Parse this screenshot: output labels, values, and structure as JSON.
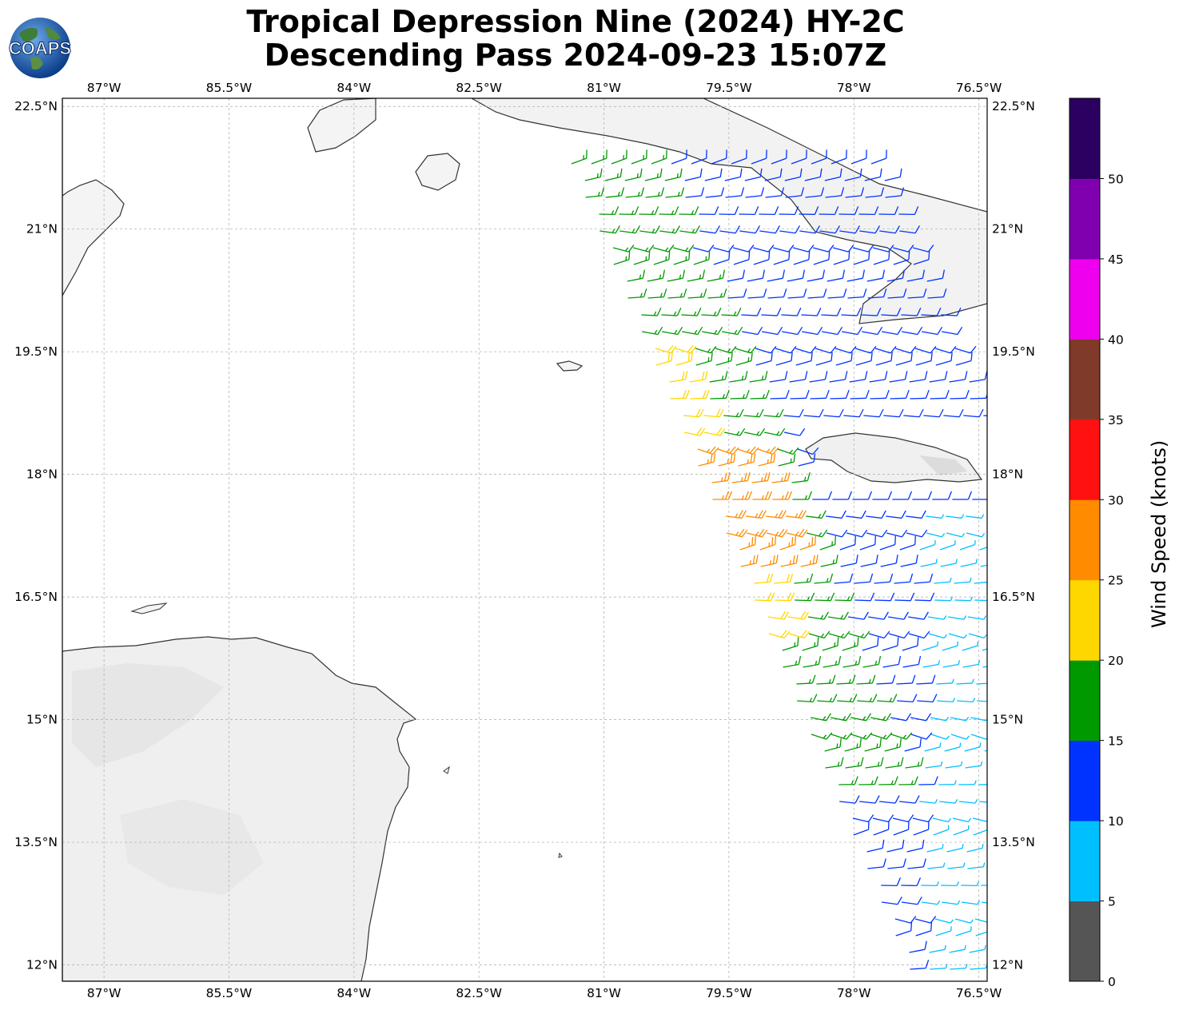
{
  "title": {
    "line1": "Tropical Depression Nine (2024) HY-2C",
    "line2": "Descending Pass 2024-09-23 15:07Z"
  },
  "logo": {
    "text": "COAPS",
    "icon": "globe-icon"
  },
  "map": {
    "lon_range": [
      -87.5,
      -76.4
    ],
    "lat_range": [
      11.8,
      22.6
    ],
    "lon_ticks": [
      "87°W",
      "85.5°W",
      "84°W",
      "82.5°W",
      "81°W",
      "79.5°W",
      "78°W",
      "76.5°W"
    ],
    "lat_ticks": [
      "22.5°N",
      "21°N",
      "19.5°N",
      "18°N",
      "16.5°N",
      "15°N",
      "13.5°N",
      "12°N"
    ],
    "gridlines": true,
    "land_color": "#f2f2f2",
    "coastline_color": "#333333"
  },
  "colorbar": {
    "label": "Wind Speed (knots)",
    "tick_labels": [
      "0",
      "5",
      "10",
      "15",
      "20",
      "25",
      "30",
      "35",
      "40",
      "45",
      "50"
    ],
    "bins": [
      {
        "from": 0,
        "to": 5,
        "color": "#555555"
      },
      {
        "from": 5,
        "to": 10,
        "color": "#00bfff"
      },
      {
        "from": 10,
        "to": 15,
        "color": "#0033ff"
      },
      {
        "from": 15,
        "to": 20,
        "color": "#009900"
      },
      {
        "from": 20,
        "to": 25,
        "color": "#ffd700"
      },
      {
        "from": 25,
        "to": 30,
        "color": "#ff8c00"
      },
      {
        "from": 30,
        "to": 35,
        "color": "#ff1111"
      },
      {
        "from": 35,
        "to": 40,
        "color": "#803a2a"
      },
      {
        "from": 40,
        "to": 45,
        "color": "#ee00ee"
      },
      {
        "from": 45,
        "to": 50,
        "color": "#8000b0"
      },
      {
        "from": 50,
        "to": 55,
        "color": "#2b0060"
      }
    ]
  },
  "swath": {
    "description_of_colors": [
      "green",
      "yellow",
      "orange",
      "blue",
      "cyan"
    ]
  }
}
